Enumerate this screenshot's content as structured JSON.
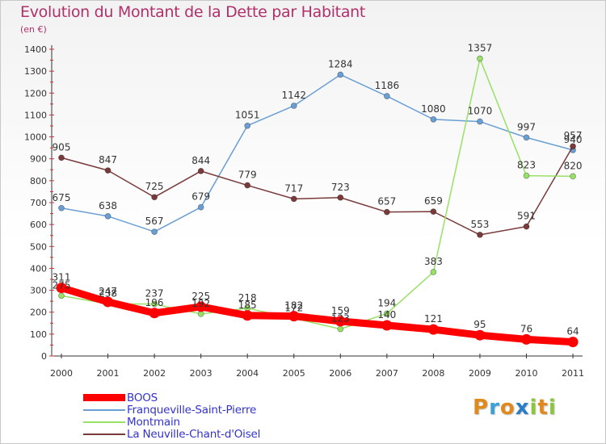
{
  "title": "Evolution du Montant de la Dette par Habitant",
  "subtitle": "(en €)",
  "logo": {
    "text": "Proxiti",
    "letters": [
      "P",
      "r",
      "o",
      "x",
      "i",
      "t",
      "i"
    ],
    "colors": [
      "#e08a1e",
      "#3aa0d8",
      "#e08a1e",
      "#2a7fc4",
      "#8cc63f",
      "#e08a1e",
      "#8cc63f"
    ]
  },
  "chart_data": {
    "type": "line",
    "x": [
      "2000",
      "2001",
      "2002",
      "2003",
      "2004",
      "2005",
      "2006",
      "2007",
      "2008",
      "2009",
      "2010",
      "2011"
    ],
    "ylim": [
      0,
      1400
    ],
    "yticks": [
      0,
      100,
      200,
      300,
      400,
      500,
      600,
      700,
      800,
      900,
      1000,
      1100,
      1200,
      1300,
      1400
    ],
    "grid": false,
    "legend_position": "bottom-left",
    "series": [
      {
        "name": "BOOS",
        "color": "#ff0000",
        "values": [
          311,
          247,
          196,
          225,
          185,
          182,
          159,
          140,
          121,
          95,
          76,
          64
        ],
        "labels": [
          "311",
          "247",
          "196",
          "225",
          "185",
          "182",
          "159",
          "140",
          "121",
          "95",
          "76",
          "64"
        ]
      },
      {
        "name": "Franqueville-Saint-Pierre",
        "color": "#6a9fd4",
        "values": [
          675,
          638,
          567,
          679,
          1051,
          1142,
          1284,
          1186,
          1080,
          1070,
          997,
          940
        ],
        "labels": [
          "675",
          "638",
          "567",
          "679",
          "1051",
          "1142",
          "1284",
          "1186",
          "1080",
          "1070",
          "997",
          "940"
        ]
      },
      {
        "name": "Montmain",
        "color": "#99e066",
        "values": [
          275,
          238,
          237,
          192,
          218,
          172,
          123,
          194,
          383,
          1357,
          823,
          820
        ],
        "labels": [
          "275",
          "238",
          "237",
          "192",
          "218",
          "172",
          "123",
          "194",
          "383",
          "1357",
          "823",
          "820"
        ]
      },
      {
        "name": "La Neuville-Chant-d'Oisel",
        "color": "#7a3a3a",
        "values": [
          905,
          847,
          725,
          844,
          779,
          717,
          723,
          657,
          659,
          553,
          591,
          957
        ],
        "labels": [
          "905",
          "847",
          "725",
          "844",
          "779",
          "717",
          "723",
          "657",
          "659",
          "553",
          "591",
          "957"
        ]
      }
    ]
  }
}
